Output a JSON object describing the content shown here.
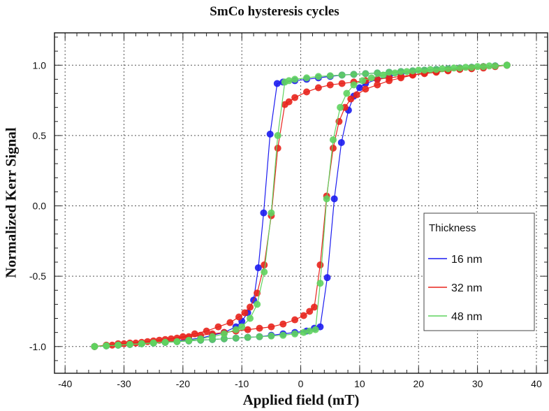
{
  "chart_data": {
    "type": "scatter",
    "title": "SmCo hysteresis cycles",
    "xlabel": "Applied field (mT)",
    "ylabel": "Normalized Kerr Signal",
    "xlim": [
      -41.8,
      41.9
    ],
    "ylim": [
      -1.19,
      1.23
    ],
    "xticks": [
      -40,
      -30,
      -20,
      -10,
      0,
      10,
      20,
      30,
      40
    ],
    "yticks": [
      -1.0,
      -0.5,
      0.0,
      0.5,
      1.0
    ],
    "ytick_labels": [
      "-1.0",
      "-0.5",
      "0.0",
      "0.5",
      "1.0"
    ],
    "grid": true,
    "legend": {
      "title": "Thickness",
      "placement": "lower-right"
    },
    "series": [
      {
        "name": "16 nm",
        "color": "#1c1cf0",
        "descending": [
          [
            35,
            1.0
          ],
          [
            33,
            0.995
          ],
          [
            31,
            0.99
          ],
          [
            29,
            0.985
          ],
          [
            27,
            0.98
          ],
          [
            25,
            0.975
          ],
          [
            23,
            0.97
          ],
          [
            21,
            0.965
          ],
          [
            19,
            0.96
          ],
          [
            17,
            0.955
          ],
          [
            15,
            0.95
          ],
          [
            13,
            0.945
          ],
          [
            11,
            0.94
          ],
          [
            9,
            0.935
          ],
          [
            7,
            0.93
          ],
          [
            5,
            0.92
          ],
          [
            3,
            0.91
          ],
          [
            1,
            0.9
          ],
          [
            -1,
            0.89
          ],
          [
            -3,
            0.88
          ],
          [
            -4,
            0.87
          ],
          [
            -5.2,
            0.51
          ],
          [
            -6.3,
            -0.05
          ],
          [
            -7.2,
            -0.44
          ],
          [
            -8,
            -0.67
          ],
          [
            -9,
            -0.76
          ],
          [
            -10,
            -0.82
          ],
          [
            -11,
            -0.86
          ],
          [
            -13,
            -0.9
          ],
          [
            -15,
            -0.92
          ],
          [
            -17,
            -0.94
          ],
          [
            -19,
            -0.95
          ],
          [
            -21,
            -0.96
          ],
          [
            -23,
            -0.97
          ],
          [
            -25,
            -0.975
          ],
          [
            -27,
            -0.98
          ],
          [
            -29,
            -0.985
          ],
          [
            -31,
            -0.99
          ],
          [
            -33,
            -0.995
          ],
          [
            -35,
            -1.0
          ]
        ],
        "ascending": [
          [
            -35,
            -1.0
          ],
          [
            -33,
            -0.995
          ],
          [
            -31,
            -0.99
          ],
          [
            -29,
            -0.985
          ],
          [
            -27,
            -0.98
          ],
          [
            -25,
            -0.975
          ],
          [
            -23,
            -0.97
          ],
          [
            -21,
            -0.965
          ],
          [
            -19,
            -0.96
          ],
          [
            -17,
            -0.955
          ],
          [
            -15,
            -0.95
          ],
          [
            -13,
            -0.945
          ],
          [
            -11,
            -0.94
          ],
          [
            -9,
            -0.935
          ],
          [
            -7,
            -0.93
          ],
          [
            -5,
            -0.92
          ],
          [
            -3,
            -0.91
          ],
          [
            -1,
            -0.9
          ],
          [
            1,
            -0.89
          ],
          [
            2.3,
            -0.87
          ],
          [
            3.3,
            -0.86
          ],
          [
            4.5,
            -0.51
          ],
          [
            5.7,
            0.05
          ],
          [
            6.9,
            0.45
          ],
          [
            8.1,
            0.68
          ],
          [
            9,
            0.78
          ],
          [
            10,
            0.84
          ],
          [
            11,
            0.87
          ],
          [
            13,
            0.9
          ],
          [
            15,
            0.92
          ],
          [
            17,
            0.94
          ],
          [
            19,
            0.95
          ],
          [
            21,
            0.96
          ],
          [
            23,
            0.97
          ],
          [
            25,
            0.975
          ],
          [
            27,
            0.98
          ],
          [
            29,
            0.985
          ],
          [
            31,
            0.99
          ],
          [
            33,
            0.995
          ],
          [
            35,
            1.0
          ]
        ]
      },
      {
        "name": "32 nm",
        "color": "#e8231c",
        "descending": [
          [
            35,
            1.0
          ],
          [
            33,
            0.99
          ],
          [
            31,
            0.98
          ],
          [
            29,
            0.975
          ],
          [
            27,
            0.97
          ],
          [
            25,
            0.96
          ],
          [
            23,
            0.95
          ],
          [
            21,
            0.94
          ],
          [
            19,
            0.93
          ],
          [
            17,
            0.92
          ],
          [
            15,
            0.91
          ],
          [
            13,
            0.9
          ],
          [
            11,
            0.89
          ],
          [
            9,
            0.88
          ],
          [
            7,
            0.87
          ],
          [
            5,
            0.86
          ],
          [
            3,
            0.84
          ],
          [
            1,
            0.81
          ],
          [
            -1,
            0.77
          ],
          [
            -2,
            0.74
          ],
          [
            -2.7,
            0.72
          ],
          [
            -3.9,
            0.41
          ],
          [
            -5,
            -0.07
          ],
          [
            -6.2,
            -0.42
          ],
          [
            -7.4,
            -0.62
          ],
          [
            -8.6,
            -0.72
          ],
          [
            -9.5,
            -0.76
          ],
          [
            -10.5,
            -0.79
          ],
          [
            -12,
            -0.83
          ],
          [
            -14,
            -0.86
          ],
          [
            -16,
            -0.89
          ],
          [
            -18,
            -0.91
          ],
          [
            -20,
            -0.93
          ],
          [
            -22,
            -0.945
          ],
          [
            -24,
            -0.955
          ],
          [
            -26,
            -0.965
          ],
          [
            -28,
            -0.975
          ],
          [
            -30,
            -0.98
          ],
          [
            -32,
            -0.99
          ],
          [
            -35,
            -1.0
          ]
        ],
        "ascending": [
          [
            -35,
            -1.0
          ],
          [
            -33,
            -0.99
          ],
          [
            -31,
            -0.98
          ],
          [
            -29,
            -0.975
          ],
          [
            -27,
            -0.97
          ],
          [
            -25,
            -0.96
          ],
          [
            -23,
            -0.95
          ],
          [
            -21,
            -0.94
          ],
          [
            -19,
            -0.93
          ],
          [
            -17,
            -0.92
          ],
          [
            -15,
            -0.91
          ],
          [
            -13,
            -0.9
          ],
          [
            -11,
            -0.89
          ],
          [
            -9,
            -0.88
          ],
          [
            -7,
            -0.87
          ],
          [
            -5,
            -0.86
          ],
          [
            -3,
            -0.84
          ],
          [
            -1,
            -0.81
          ],
          [
            0.5,
            -0.78
          ],
          [
            1.5,
            -0.75
          ],
          [
            2.3,
            -0.72
          ],
          [
            3.3,
            -0.42
          ],
          [
            4.4,
            0.07
          ],
          [
            5.5,
            0.41
          ],
          [
            6.5,
            0.6
          ],
          [
            7.5,
            0.7
          ],
          [
            8.5,
            0.76
          ],
          [
            9.5,
            0.79
          ],
          [
            11,
            0.83
          ],
          [
            13,
            0.86
          ],
          [
            15,
            0.89
          ],
          [
            17,
            0.91
          ],
          [
            19,
            0.93
          ],
          [
            21,
            0.945
          ],
          [
            23,
            0.955
          ],
          [
            25,
            0.965
          ],
          [
            27,
            0.975
          ],
          [
            29,
            0.98
          ],
          [
            31,
            0.99
          ],
          [
            35,
            1.0
          ]
        ]
      },
      {
        "name": "48 nm",
        "color": "#5fd35f",
        "descending": [
          [
            35,
            1.0
          ],
          [
            33,
            0.995
          ],
          [
            31,
            0.99
          ],
          [
            29,
            0.985
          ],
          [
            27,
            0.98
          ],
          [
            25,
            0.975
          ],
          [
            23,
            0.97
          ],
          [
            21,
            0.965
          ],
          [
            19,
            0.96
          ],
          [
            17,
            0.955
          ],
          [
            15,
            0.95
          ],
          [
            13,
            0.945
          ],
          [
            11,
            0.94
          ],
          [
            9,
            0.935
          ],
          [
            7,
            0.93
          ],
          [
            5,
            0.925
          ],
          [
            3,
            0.92
          ],
          [
            1,
            0.91
          ],
          [
            -1,
            0.9
          ],
          [
            -2,
            0.89
          ],
          [
            -2.7,
            0.88
          ],
          [
            -3.9,
            0.5
          ],
          [
            -5,
            -0.05
          ],
          [
            -6.2,
            -0.47
          ],
          [
            -7.4,
            -0.7
          ],
          [
            -8.6,
            -0.8
          ],
          [
            -10,
            -0.86
          ],
          [
            -11,
            -0.88
          ],
          [
            -13,
            -0.91
          ],
          [
            -15,
            -0.93
          ],
          [
            -17,
            -0.945
          ],
          [
            -19,
            -0.955
          ],
          [
            -21,
            -0.965
          ],
          [
            -23,
            -0.97
          ],
          [
            -25,
            -0.975
          ],
          [
            -27,
            -0.98
          ],
          [
            -29,
            -0.985
          ],
          [
            -31,
            -0.99
          ],
          [
            -33,
            -0.995
          ],
          [
            -35,
            -1.0
          ]
        ],
        "ascending": [
          [
            -35,
            -1.0
          ],
          [
            -33,
            -0.995
          ],
          [
            -31,
            -0.99
          ],
          [
            -29,
            -0.985
          ],
          [
            -27,
            -0.98
          ],
          [
            -25,
            -0.975
          ],
          [
            -23,
            -0.97
          ],
          [
            -21,
            -0.965
          ],
          [
            -19,
            -0.96
          ],
          [
            -17,
            -0.955
          ],
          [
            -15,
            -0.95
          ],
          [
            -13,
            -0.945
          ],
          [
            -11,
            -0.94
          ],
          [
            -9,
            -0.935
          ],
          [
            -7,
            -0.93
          ],
          [
            -5,
            -0.925
          ],
          [
            -3,
            -0.92
          ],
          [
            -1,
            -0.91
          ],
          [
            0.5,
            -0.9
          ],
          [
            1.5,
            -0.89
          ],
          [
            2.5,
            -0.88
          ],
          [
            3.3,
            -0.55
          ],
          [
            4.4,
            0.05
          ],
          [
            5.5,
            0.47
          ],
          [
            6.7,
            0.7
          ],
          [
            7.8,
            0.8
          ],
          [
            9,
            0.86
          ],
          [
            10.5,
            0.89
          ],
          [
            12,
            0.91
          ],
          [
            14,
            0.93
          ],
          [
            16,
            0.945
          ],
          [
            18,
            0.955
          ],
          [
            20,
            0.965
          ],
          [
            22,
            0.97
          ],
          [
            24,
            0.975
          ],
          [
            26,
            0.98
          ],
          [
            28,
            0.985
          ],
          [
            30,
            0.99
          ],
          [
            32,
            0.995
          ],
          [
            35,
            1.0
          ]
        ]
      }
    ]
  }
}
